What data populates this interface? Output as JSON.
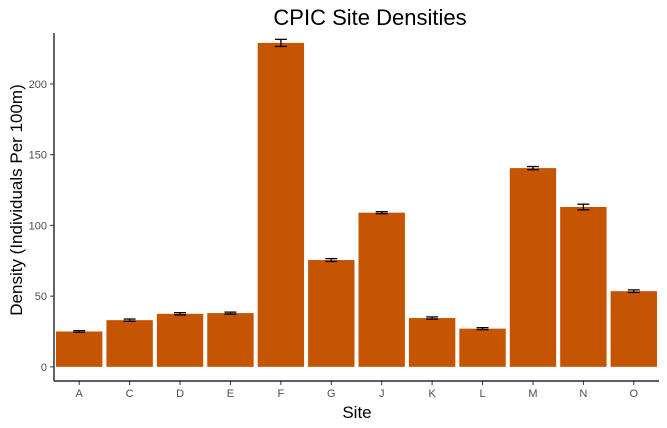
{
  "chart_data": {
    "type": "bar",
    "title": "CPIC Site Densities",
    "xlabel": "Site",
    "ylabel": "Density (Individuals Per 100m)",
    "categories": [
      "A",
      "C",
      "D",
      "E",
      "F",
      "G",
      "J",
      "K",
      "L",
      "M",
      "N",
      "O"
    ],
    "values": [
      25,
      33,
      37.5,
      38,
      229,
      75.5,
      109,
      34.5,
      27,
      140.5,
      113,
      53.5
    ],
    "errors": [
      0.6,
      0.8,
      0.8,
      0.7,
      2.5,
      1.0,
      0.7,
      0.8,
      0.7,
      1.1,
      2.0,
      0.9
    ],
    "ylim": [
      -10,
      236
    ],
    "yticks": [
      0,
      50,
      100,
      150,
      200
    ],
    "grid": false,
    "bar_color": "#c55403",
    "error_bar_color": "#000000"
  }
}
